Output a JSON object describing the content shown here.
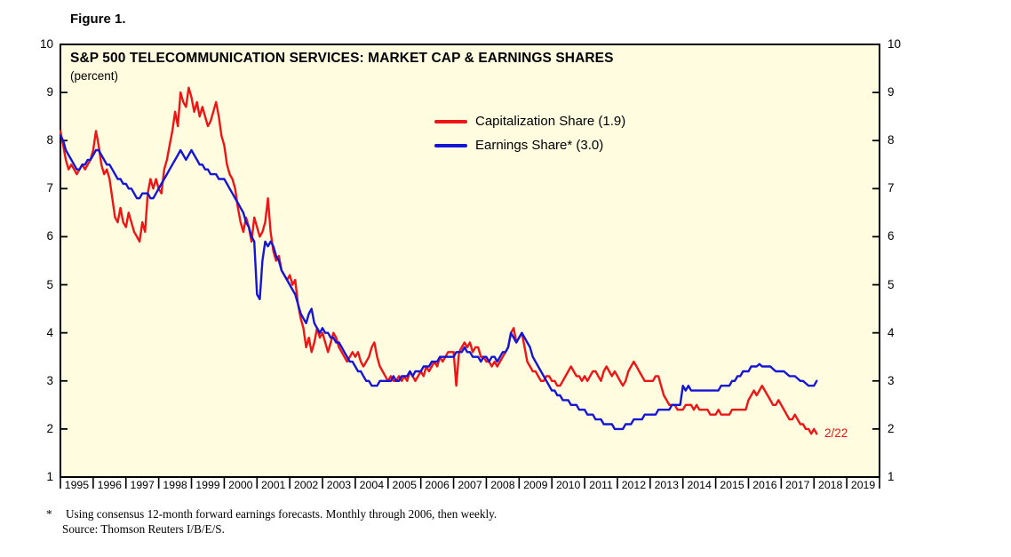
{
  "figure_label": "Figure 1.",
  "colors": {
    "plot_bg": "#fffce0",
    "axis": "#000000"
  },
  "chart_data": {
    "type": "line",
    "title": "S&P 500 TELECOMMUNICATION SERVICES: MARKET CAP & EARNINGS SHARES",
    "subtitle": "(percent)",
    "ylabel": "",
    "xlabel": "",
    "ylim": [
      1,
      10
    ],
    "y_ticks": [
      1,
      2,
      3,
      4,
      5,
      6,
      7,
      8,
      9,
      10
    ],
    "x_range": [
      1995,
      2020
    ],
    "x_tick_labels": [
      "1995",
      "1996",
      "1997",
      "1998",
      "1999",
      "2000",
      "2001",
      "2002",
      "2003",
      "2004",
      "2005",
      "2006",
      "2007",
      "2008",
      "2009",
      "2010",
      "2011",
      "2012",
      "2013",
      "2014",
      "2015",
      "2016",
      "2017",
      "2018",
      "2019"
    ],
    "grid": false,
    "legend_position": "inside-top-center",
    "annotation": {
      "text": "2/22",
      "x": 2018.32,
      "y": 1.9,
      "color": "#ed1515"
    },
    "series": [
      {
        "name": "Capitalization Share (1.9)",
        "color": "#ed1515",
        "start_year": 1995,
        "interval_months": 1,
        "values": [
          8.2,
          7.9,
          7.6,
          7.4,
          7.5,
          7.4,
          7.3,
          7.4,
          7.5,
          7.4,
          7.5,
          7.6,
          7.8,
          8.2,
          7.9,
          7.5,
          7.3,
          7.4,
          7.2,
          6.8,
          6.4,
          6.3,
          6.6,
          6.3,
          6.2,
          6.5,
          6.3,
          6.1,
          6.0,
          5.9,
          6.3,
          6.1,
          6.9,
          7.2,
          7.0,
          7.2,
          7.0,
          6.9,
          7.4,
          7.6,
          7.9,
          8.2,
          8.6,
          8.3,
          9.0,
          8.8,
          8.7,
          9.1,
          8.9,
          8.6,
          8.8,
          8.5,
          8.7,
          8.5,
          8.3,
          8.4,
          8.6,
          8.8,
          8.5,
          8.1,
          7.9,
          7.5,
          7.3,
          7.2,
          7.0,
          6.6,
          6.3,
          6.1,
          6.4,
          6.2,
          5.9,
          6.4,
          6.2,
          6.0,
          6.1,
          6.3,
          6.8,
          6.1,
          5.7,
          5.5,
          5.6,
          5.3,
          5.2,
          5.1,
          5.2,
          5.0,
          5.1,
          4.6,
          4.3,
          4.1,
          3.7,
          3.9,
          3.6,
          3.8,
          4.1,
          3.9,
          4.0,
          3.8,
          3.6,
          3.8,
          4.0,
          3.9,
          3.7,
          3.6,
          3.5,
          3.4,
          3.5,
          3.6,
          3.5,
          3.6,
          3.4,
          3.3,
          3.4,
          3.5,
          3.7,
          3.8,
          3.5,
          3.3,
          3.2,
          3.1,
          3.0,
          3.1,
          3.0,
          3.0,
          3.1,
          3.0,
          3.1,
          3.0,
          3.2,
          3.1,
          3.0,
          3.1,
          3.2,
          3.1,
          3.3,
          3.2,
          3.3,
          3.4,
          3.3,
          3.5,
          3.4,
          3.5,
          3.6,
          3.6,
          3.6,
          2.9,
          3.6,
          3.7,
          3.8,
          3.7,
          3.8,
          3.6,
          3.7,
          3.7,
          3.5,
          3.5,
          3.4,
          3.4,
          3.3,
          3.4,
          3.3,
          3.4,
          3.5,
          3.6,
          3.7,
          4.0,
          4.1,
          3.8,
          3.9,
          4.0,
          3.7,
          3.4,
          3.3,
          3.2,
          3.2,
          3.1,
          3.0,
          3.0,
          3.1,
          3.1,
          3.0,
          3.0,
          2.9,
          2.9,
          3.0,
          3.1,
          3.2,
          3.3,
          3.2,
          3.1,
          3.1,
          3.0,
          3.1,
          3.0,
          3.1,
          3.2,
          3.2,
          3.1,
          3.0,
          3.2,
          3.3,
          3.2,
          3.1,
          3.2,
          3.1,
          3.0,
          2.9,
          3.0,
          3.2,
          3.3,
          3.4,
          3.3,
          3.2,
          3.1,
          3.0,
          3.0,
          3.0,
          3.0,
          3.1,
          3.1,
          2.9,
          2.7,
          2.6,
          2.5,
          2.5,
          2.5,
          2.4,
          2.4,
          2.4,
          2.5,
          2.5,
          2.5,
          2.4,
          2.5,
          2.4,
          2.4,
          2.4,
          2.4,
          2.3,
          2.3,
          2.3,
          2.4,
          2.3,
          2.3,
          2.3,
          2.3,
          2.4,
          2.4,
          2.4,
          2.4,
          2.4,
          2.4,
          2.6,
          2.7,
          2.8,
          2.7,
          2.8,
          2.9,
          2.8,
          2.7,
          2.6,
          2.5,
          2.5,
          2.6,
          2.5,
          2.4,
          2.3,
          2.2,
          2.2,
          2.3,
          2.2,
          2.1,
          2.1,
          2.0,
          2.0,
          1.9,
          2.0,
          1.9
        ]
      },
      {
        "name": "Earnings Share* (3.0)",
        "color": "#1515d6",
        "start_year": 1995,
        "interval_months": 1,
        "values": [
          8.1,
          8.0,
          7.8,
          7.7,
          7.6,
          7.5,
          7.4,
          7.4,
          7.5,
          7.5,
          7.6,
          7.6,
          7.7,
          7.8,
          7.8,
          7.7,
          7.6,
          7.5,
          7.5,
          7.4,
          7.3,
          7.2,
          7.2,
          7.1,
          7.1,
          7.0,
          7.0,
          6.9,
          6.8,
          6.8,
          6.9,
          6.9,
          6.9,
          6.8,
          6.8,
          6.9,
          7.0,
          7.1,
          7.2,
          7.3,
          7.4,
          7.5,
          7.6,
          7.7,
          7.8,
          7.7,
          7.6,
          7.7,
          7.8,
          7.7,
          7.6,
          7.5,
          7.5,
          7.4,
          7.4,
          7.3,
          7.3,
          7.3,
          7.2,
          7.2,
          7.2,
          7.1,
          7.0,
          6.9,
          6.8,
          6.7,
          6.6,
          6.5,
          6.3,
          6.2,
          6.0,
          5.9,
          4.8,
          4.7,
          5.5,
          5.9,
          5.8,
          5.9,
          5.8,
          5.6,
          5.5,
          5.3,
          5.2,
          5.1,
          5.0,
          4.9,
          4.8,
          4.6,
          4.4,
          4.3,
          4.2,
          4.4,
          4.5,
          4.2,
          4.1,
          4.0,
          4.1,
          4.0,
          4.0,
          3.9,
          3.9,
          3.8,
          3.8,
          3.7,
          3.6,
          3.5,
          3.4,
          3.4,
          3.3,
          3.2,
          3.2,
          3.1,
          3.0,
          3.0,
          2.9,
          2.9,
          2.9,
          3.0,
          3.0,
          3.0,
          3.0,
          3.0,
          3.1,
          3.0,
          3.0,
          3.1,
          3.1,
          3.1,
          3.2,
          3.1,
          3.2,
          3.2,
          3.2,
          3.3,
          3.3,
          3.3,
          3.4,
          3.4,
          3.4,
          3.5,
          3.5,
          3.5,
          3.5,
          3.5,
          3.5,
          3.6,
          3.6,
          3.6,
          3.7,
          3.6,
          3.6,
          3.5,
          3.5,
          3.5,
          3.4,
          3.5,
          3.5,
          3.4,
          3.5,
          3.5,
          3.4,
          3.5,
          3.6,
          3.6,
          3.7,
          4.0,
          3.9,
          3.8,
          3.9,
          4.0,
          3.9,
          3.8,
          3.7,
          3.5,
          3.4,
          3.3,
          3.2,
          3.1,
          3.0,
          2.9,
          2.8,
          2.8,
          2.7,
          2.7,
          2.6,
          2.6,
          2.6,
          2.5,
          2.5,
          2.5,
          2.4,
          2.4,
          2.4,
          2.3,
          2.3,
          2.3,
          2.2,
          2.2,
          2.2,
          2.1,
          2.1,
          2.1,
          2.1,
          2.0,
          2.0,
          2.0,
          2.0,
          2.1,
          2.1,
          2.1,
          2.2,
          2.2,
          2.2,
          2.2,
          2.3,
          2.3,
          2.3,
          2.3,
          2.3,
          2.4,
          2.4,
          2.4,
          2.4,
          2.4,
          2.5,
          2.5,
          2.5,
          2.5,
          2.9,
          2.8,
          2.9,
          2.8,
          2.8,
          2.8,
          2.8,
          2.8,
          2.8,
          2.8,
          2.8,
          2.8,
          2.8,
          2.8,
          2.9,
          2.9,
          2.9,
          2.9,
          3.0,
          3.0,
          3.1,
          3.1,
          3.2,
          3.2,
          3.2,
          3.3,
          3.3,
          3.3,
          3.35,
          3.3,
          3.3,
          3.3,
          3.3,
          3.25,
          3.2,
          3.2,
          3.2,
          3.2,
          3.15,
          3.1,
          3.1,
          3.1,
          3.05,
          3.0,
          3.0,
          2.95,
          2.9,
          2.9,
          2.9,
          3.0
        ]
      }
    ]
  },
  "footnote": {
    "asterisk": "*",
    "line1": "Using consensus 12-month forward earnings forecasts. Monthly through 2006, then weekly.",
    "line2": "Source: Thomson Reuters I/B/E/S."
  }
}
